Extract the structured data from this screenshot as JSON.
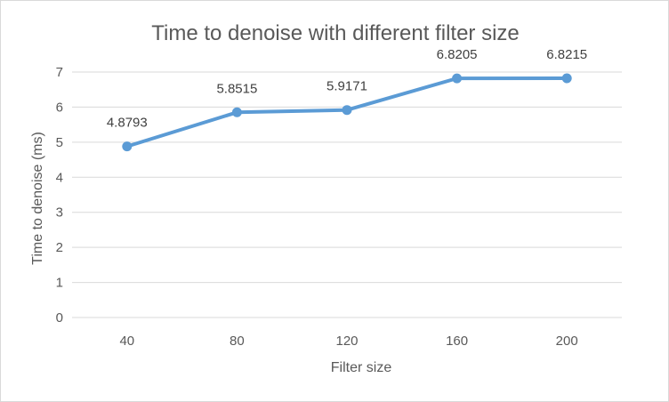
{
  "chart_data": {
    "type": "line",
    "title": "Time to denoise with different filter size",
    "xlabel": "Filter size",
    "ylabel": "Time to denoise (ms)",
    "categories": [
      "40",
      "80",
      "120",
      "160",
      "200"
    ],
    "series": [
      {
        "values": [
          4.8793,
          5.8515,
          5.9171,
          6.8205,
          6.8215
        ],
        "labels": [
          "4.8793",
          "5.8515",
          "5.9171",
          "6.8205",
          "6.8215"
        ]
      }
    ],
    "ylim": [
      0,
      7
    ],
    "yticks": [
      "0",
      "1",
      "2",
      "3",
      "4",
      "5",
      "6",
      "7"
    ],
    "grid": true,
    "legend": "none",
    "colors": {
      "line": "#5b9bd5",
      "text": "#595959",
      "grid": "#d9d9d9"
    }
  }
}
